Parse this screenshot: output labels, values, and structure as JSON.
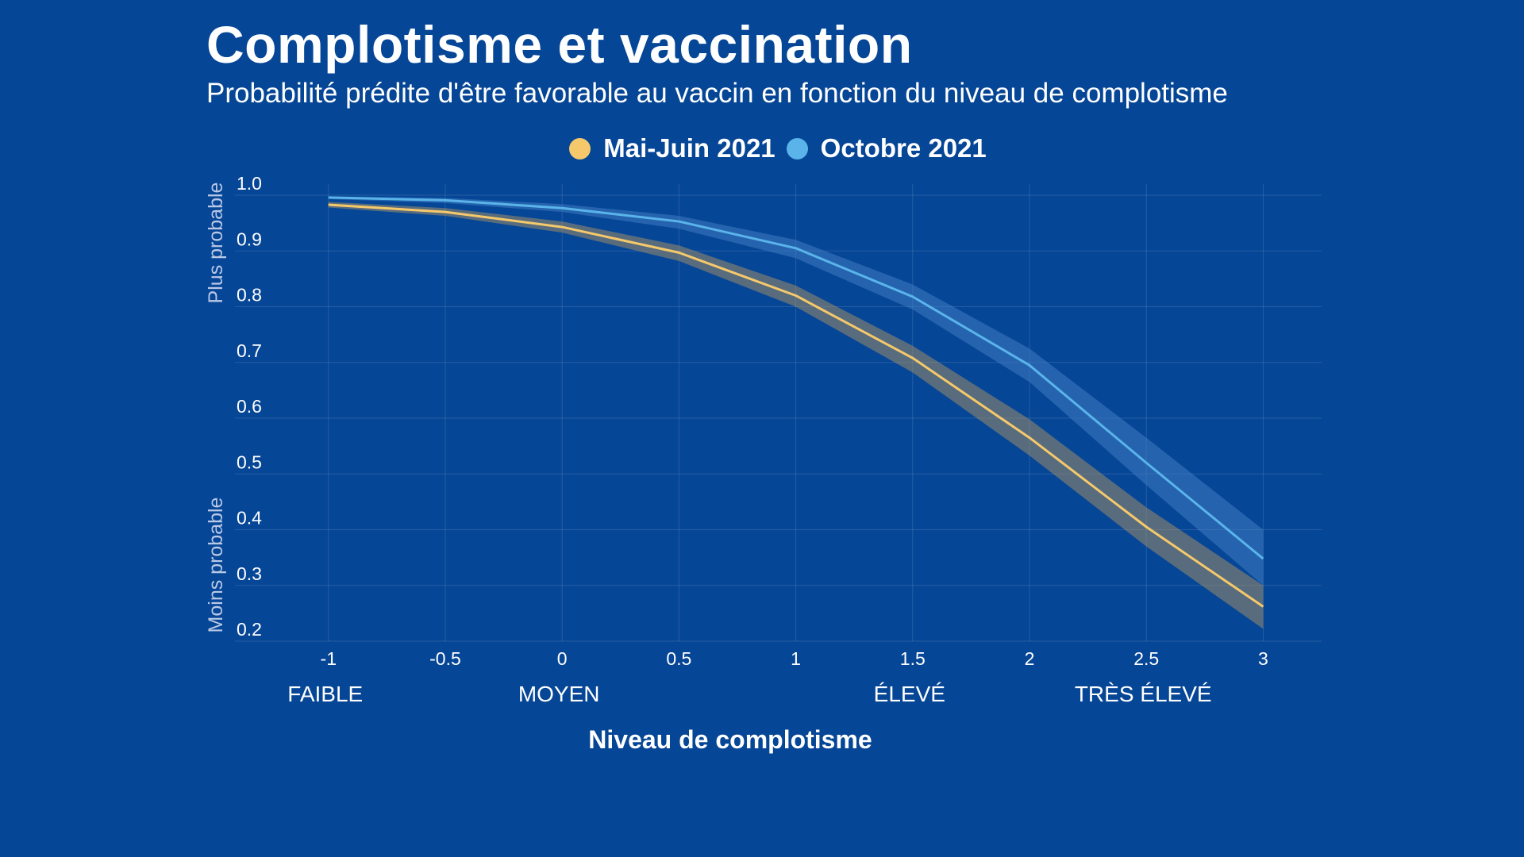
{
  "title": "Complotisme et vaccination",
  "subtitle": "Probabilité prédite d'être favorable au vaccin en fonction du niveau de complotisme",
  "colors": {
    "background": "#064696",
    "series_mai_juin": "#f5c96b",
    "series_octobre": "#5ab4ea",
    "band_mai_juin": "#9c8d6a",
    "band_octobre": "#3f7cc2"
  },
  "chart_data": {
    "type": "line",
    "title": "Complotisme et vaccination",
    "subtitle": "Probabilité prédite d'être favorable au vaccin en fonction du niveau de complotisme",
    "xlabel": "Niveau de complotisme",
    "ylabel_top": "Plus probable",
    "ylabel_bottom": "Moins probable",
    "x": [
      -1,
      -0.5,
      0,
      0.5,
      1,
      1.5,
      2,
      2.5,
      3
    ],
    "x_tick_labels": [
      "-1",
      "-0.5",
      "0",
      "0.5",
      "1",
      "1.5",
      "2",
      "2.5",
      "3"
    ],
    "y_ticks": [
      1.0,
      0.9,
      0.8,
      0.7,
      0.6,
      0.5,
      0.4,
      0.3,
      0.2
    ],
    "y_tick_labels": [
      "1.0",
      "0.9",
      "0.8",
      "0.7",
      "0.6",
      "0.5",
      "0.4",
      "0.3",
      "0.2"
    ],
    "xlim": [
      -1.4,
      3.25
    ],
    "ylim": [
      0.2,
      1.02
    ],
    "grid": true,
    "legend_position": "top-center",
    "category_labels": [
      {
        "x": -1,
        "label": "FAIBLE"
      },
      {
        "x": 0,
        "label": "MOYEN"
      },
      {
        "x": 1.5,
        "label": "ÉLEVÉ"
      },
      {
        "x": 2.5,
        "label": "TRÈS ÉLEVÉ"
      }
    ],
    "series": [
      {
        "name": "Mai-Juin 2021",
        "values": [
          0.983,
          0.97,
          0.943,
          0.897,
          0.82,
          0.708,
          0.565,
          0.405,
          0.262
        ],
        "lower": [
          0.978,
          0.963,
          0.933,
          0.882,
          0.8,
          0.682,
          0.533,
          0.37,
          0.222
        ],
        "upper": [
          0.988,
          0.977,
          0.953,
          0.91,
          0.838,
          0.73,
          0.598,
          0.44,
          0.3
        ]
      },
      {
        "name": "Octobre 2021",
        "values": [
          0.996,
          0.991,
          0.977,
          0.953,
          0.905,
          0.818,
          0.695,
          0.52,
          0.348
        ],
        "lower": [
          0.993,
          0.986,
          0.97,
          0.94,
          0.887,
          0.795,
          0.665,
          0.48,
          0.3
        ],
        "upper": [
          0.998,
          0.995,
          0.984,
          0.963,
          0.92,
          0.84,
          0.725,
          0.565,
          0.4
        ]
      }
    ]
  }
}
